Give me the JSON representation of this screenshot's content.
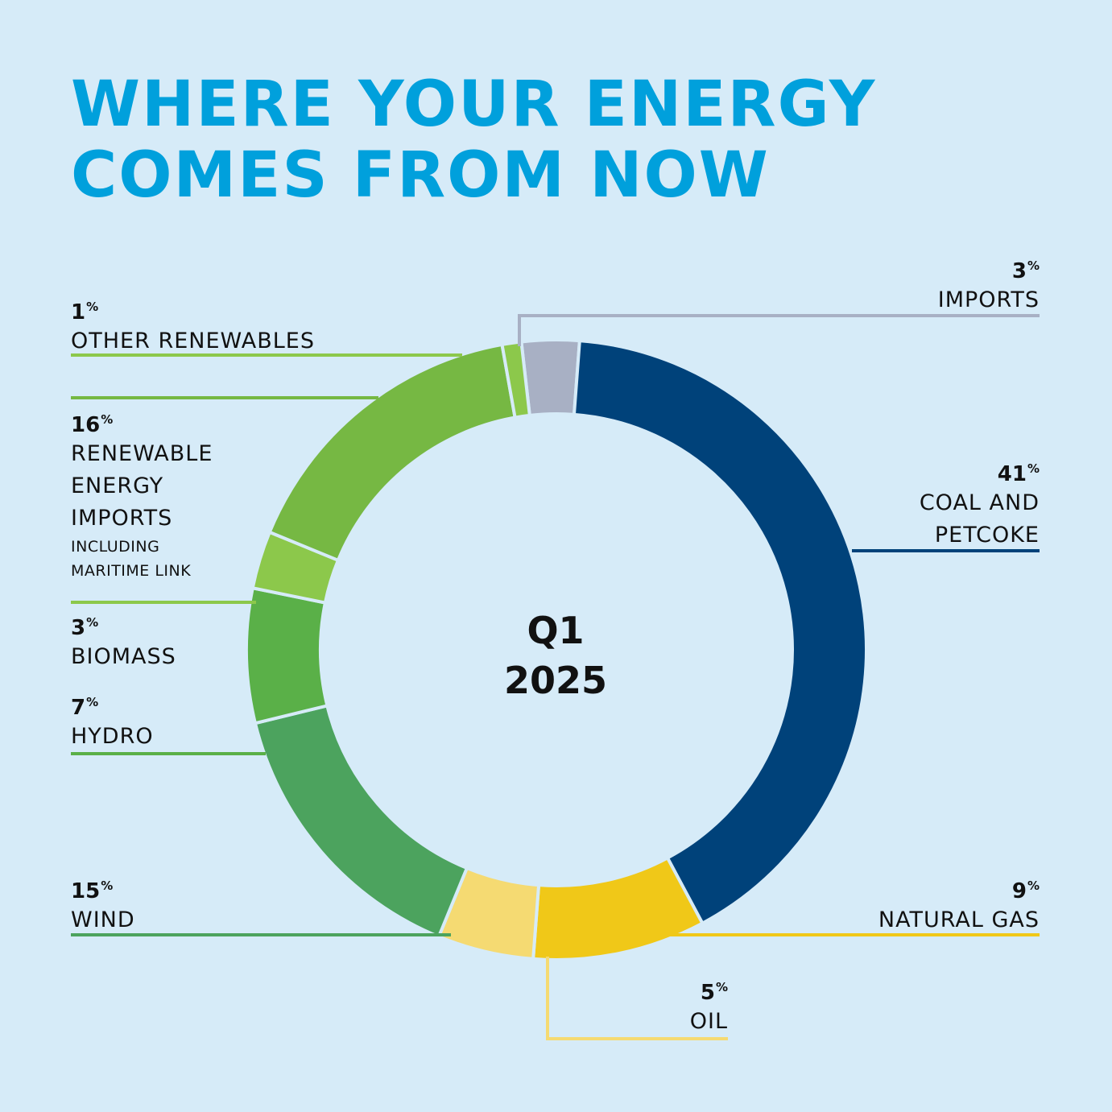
{
  "title_line1": "WHERE YOUR ENERGY",
  "title_line2": "COMES FROM NOW",
  "center_line1": "Q1",
  "center_line2": "2025",
  "percent_sign": "%",
  "chart_data": {
    "type": "pie",
    "donut": true,
    "categories": [
      "IMPORTS",
      "COAL AND PETCOKE",
      "NATURAL GAS",
      "OIL",
      "WIND",
      "HYDRO",
      "BIOMASS",
      "RENEWABLE ENERGY IMPORTS",
      "OTHER RENEWABLES"
    ],
    "values": [
      3,
      41,
      9,
      5,
      15,
      7,
      3,
      16,
      1
    ],
    "colors": [
      "#a8b0c4",
      "#00427a",
      "#f0c818",
      "#f5da72",
      "#4ca35e",
      "#5ab048",
      "#8cc84b",
      "#76b843",
      "#8cc84b"
    ],
    "unit": "%"
  },
  "labels": {
    "imports": {
      "pct": "3",
      "name": "IMPORTS"
    },
    "coal": {
      "pct": "41",
      "name1": "COAL AND",
      "name2": "PETCOKE"
    },
    "gas": {
      "pct": "9",
      "name": "NATURAL GAS"
    },
    "oil": {
      "pct": "5",
      "name": "OIL"
    },
    "wind": {
      "pct": "15",
      "name": "WIND"
    },
    "hydro": {
      "pct": "7",
      "name": "HYDRO"
    },
    "biomass": {
      "pct": "3",
      "name": "BIOMASS"
    },
    "rei": {
      "pct": "16",
      "name1": "RENEWABLE",
      "name2": "ENERGY",
      "name3": "IMPORTS",
      "note1": "INCLUDING",
      "note2": "MARITIME LINK"
    },
    "other": {
      "pct": "1",
      "name": "OTHER RENEWABLES"
    }
  }
}
